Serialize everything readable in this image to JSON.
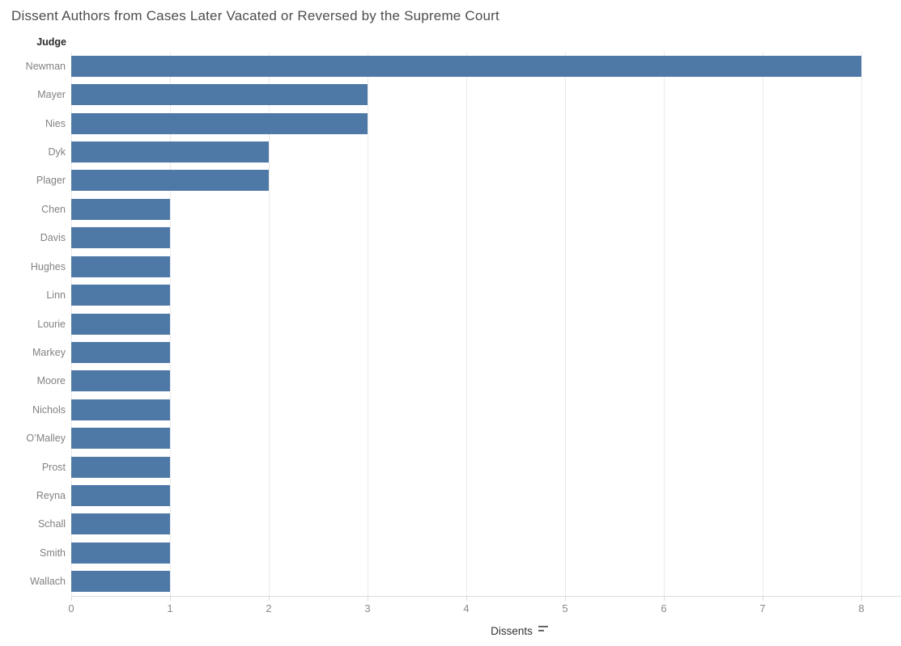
{
  "title": "Dissent Authors from Cases Later Vacated or Reversed by the Supreme Court",
  "row_header": "Judge",
  "axis": {
    "label": "Dissents",
    "ticks": [
      "0",
      "1",
      "2",
      "3",
      "4",
      "5",
      "6",
      "7",
      "8"
    ],
    "max": 8,
    "sort_icon": "sort-descending-icon"
  },
  "colors": {
    "bar": "#4e79a7",
    "gridline": "#eaeaea",
    "axis_line": "#dcdcdc",
    "title_text": "#4d4d4d",
    "row_label_text": "#828282",
    "header_text": "#2b2b2b",
    "tick_label_text": "#888888",
    "axis_title_text": "#333333"
  },
  "chart_data": {
    "type": "bar",
    "orientation": "horizontal",
    "title": "Dissent Authors from Cases Later Vacated or Reversed by the Supreme Court",
    "categories": [
      "Newman",
      "Mayer",
      "Nies",
      "Dyk",
      "Plager",
      "Chen",
      "Davis",
      "Hughes",
      "Linn",
      "Lourie",
      "Markey",
      "Moore",
      "Nichols",
      "O’Malley",
      "Prost",
      "Reyna",
      "Schall",
      "Smith",
      "Wallach"
    ],
    "values": [
      8,
      3,
      3,
      2,
      2,
      1,
      1,
      1,
      1,
      1,
      1,
      1,
      1,
      1,
      1,
      1,
      1,
      1,
      1
    ],
    "xlabel": "Dissents",
    "ylabel": "Judge",
    "xlim": [
      0,
      8.4
    ],
    "xticks": [
      0,
      1,
      2,
      3,
      4,
      5,
      6,
      7,
      8
    ],
    "grid": "vertical",
    "sort": "descending",
    "legend": "none"
  }
}
